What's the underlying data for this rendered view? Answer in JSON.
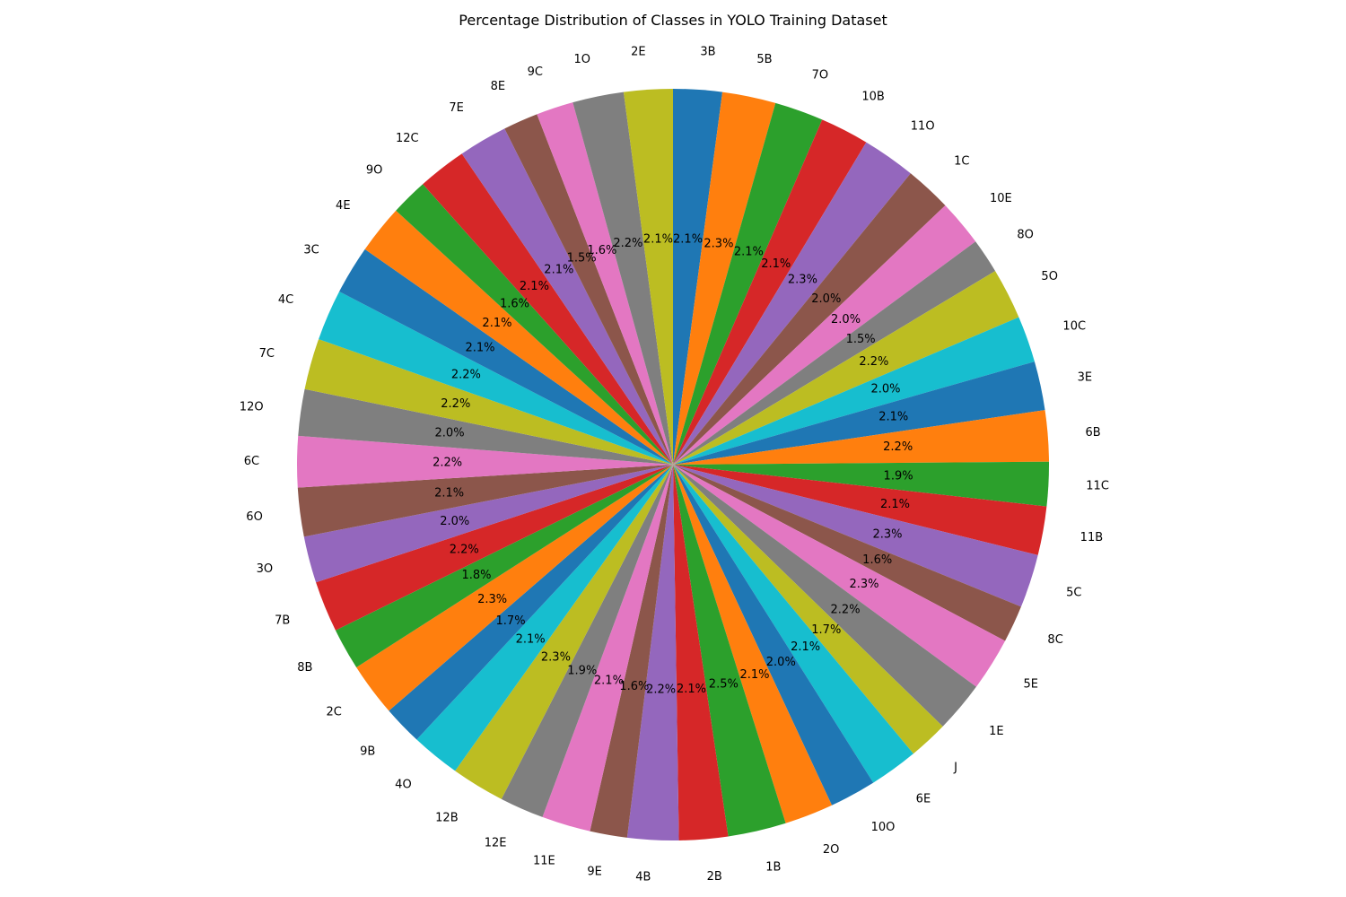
{
  "chart_data": {
    "type": "pie",
    "title": "Percentage Distribution of Classes in YOLO Training Dataset",
    "start_angle_deg": 90,
    "direction": "clockwise",
    "colors": [
      "#1f77b4",
      "#ff7f0e",
      "#2ca02c",
      "#d62728",
      "#9467bd",
      "#8c564b",
      "#e377c2",
      "#7f7f7f",
      "#bcbd22",
      "#17becf"
    ],
    "slices": [
      {
        "label": "3B",
        "value": 2.1,
        "pct": "2.1%"
      },
      {
        "label": "5B",
        "value": 2.3,
        "pct": "2.3%"
      },
      {
        "label": "7O",
        "value": 2.1,
        "pct": "2.1%"
      },
      {
        "label": "10B",
        "value": 2.1,
        "pct": "2.1%"
      },
      {
        "label": "11O",
        "value": 2.3,
        "pct": "2.3%"
      },
      {
        "label": "1C",
        "value": 2.0,
        "pct": "2.0%"
      },
      {
        "label": "10E",
        "value": 2.0,
        "pct": "2.0%"
      },
      {
        "label": "8O",
        "value": 1.5,
        "pct": "1.5%"
      },
      {
        "label": "5O",
        "value": 2.2,
        "pct": "2.2%"
      },
      {
        "label": "10C",
        "value": 2.0,
        "pct": "2.0%"
      },
      {
        "label": "3E",
        "value": 2.1,
        "pct": "2.1%"
      },
      {
        "label": "6B",
        "value": 2.2,
        "pct": "2.2%"
      },
      {
        "label": "11C",
        "value": 1.9,
        "pct": "1.9%"
      },
      {
        "label": "11B",
        "value": 2.1,
        "pct": "2.1%"
      },
      {
        "label": "5C",
        "value": 2.3,
        "pct": "2.3%"
      },
      {
        "label": "8C",
        "value": 1.6,
        "pct": "1.6%"
      },
      {
        "label": "5E",
        "value": 2.3,
        "pct": "2.3%"
      },
      {
        "label": "1E",
        "value": 2.2,
        "pct": "2.2%"
      },
      {
        "label": "J",
        "value": 1.7,
        "pct": "1.7%"
      },
      {
        "label": "6E",
        "value": 2.1,
        "pct": "2.1%"
      },
      {
        "label": "10O",
        "value": 2.0,
        "pct": "2.0%"
      },
      {
        "label": "2O",
        "value": 2.1,
        "pct": "2.1%"
      },
      {
        "label": "1B",
        "value": 2.5,
        "pct": "2.5%"
      },
      {
        "label": "2B",
        "value": 2.1,
        "pct": "2.1%"
      },
      {
        "label": "4B",
        "value": 2.2,
        "pct": "2.2%"
      },
      {
        "label": "9E",
        "value": 1.6,
        "pct": "1.6%"
      },
      {
        "label": "11E",
        "value": 2.1,
        "pct": "2.1%"
      },
      {
        "label": "12E",
        "value": 1.9,
        "pct": "1.9%"
      },
      {
        "label": "12B",
        "value": 2.3,
        "pct": "2.3%"
      },
      {
        "label": "4O",
        "value": 2.1,
        "pct": "2.1%"
      },
      {
        "label": "9B",
        "value": 1.7,
        "pct": "1.7%"
      },
      {
        "label": "2C",
        "value": 2.3,
        "pct": "2.3%"
      },
      {
        "label": "8B",
        "value": 1.8,
        "pct": "1.8%"
      },
      {
        "label": "7B",
        "value": 2.2,
        "pct": "2.2%"
      },
      {
        "label": "3O",
        "value": 2.0,
        "pct": "2.0%"
      },
      {
        "label": "6O",
        "value": 2.1,
        "pct": "2.1%"
      },
      {
        "label": "6C",
        "value": 2.2,
        "pct": "2.2%"
      },
      {
        "label": "12O",
        "value": 2.0,
        "pct": "2.0%"
      },
      {
        "label": "7C",
        "value": 2.2,
        "pct": "2.2%"
      },
      {
        "label": "4C",
        "value": 2.2,
        "pct": "2.2%"
      },
      {
        "label": "3C",
        "value": 2.1,
        "pct": "2.1%"
      },
      {
        "label": "4E",
        "value": 2.1,
        "pct": "2.1%"
      },
      {
        "label": "9O",
        "value": 1.6,
        "pct": "1.6%"
      },
      {
        "label": "12C",
        "value": 2.1,
        "pct": "2.1%"
      },
      {
        "label": "7E",
        "value": 2.1,
        "pct": "2.1%"
      },
      {
        "label": "8E",
        "value": 1.5,
        "pct": "1.5%"
      },
      {
        "label": "9C",
        "value": 1.6,
        "pct": "1.6%"
      },
      {
        "label": "1O",
        "value": 2.2,
        "pct": "2.2%"
      },
      {
        "label": "2E",
        "value": 2.1,
        "pct": "2.1%"
      }
    ]
  }
}
